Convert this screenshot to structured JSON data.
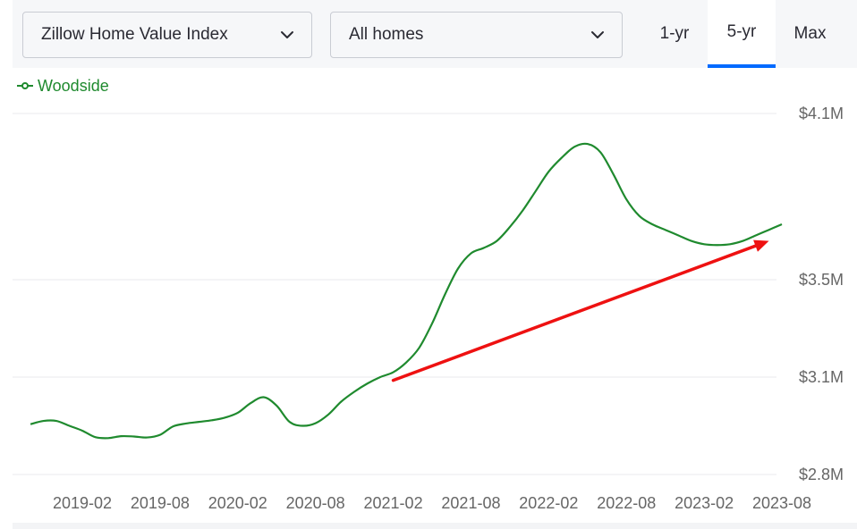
{
  "controls": {
    "metric_select": "Zillow Home Value Index",
    "home_type_select": "All homes",
    "range_tabs": [
      {
        "label": "1-yr",
        "active": false
      },
      {
        "label": "5-yr",
        "active": true
      },
      {
        "label": "Max",
        "active": false
      }
    ]
  },
  "colors": {
    "series": "#1f8a2e",
    "annotation_arrow": "#ee1111",
    "active_tab_underline": "#006aff",
    "gridline": "#e9e9ee",
    "tick_text": "#666666"
  },
  "chart_data": {
    "type": "line",
    "title": "",
    "xlabel": "",
    "ylabel": "",
    "legend_position": "top-left",
    "grid": true,
    "x_ticks": [
      "2019-02",
      "2019-08",
      "2020-02",
      "2020-08",
      "2021-02",
      "2021-08",
      "2022-02",
      "2022-08",
      "2023-02",
      "2023-08"
    ],
    "y_ticks": [
      "$4.1M",
      "$3.5M",
      "$3.1M",
      "$2.8M"
    ],
    "ylim": [
      2.8,
      4.1
    ],
    "series": [
      {
        "name": "Woodside",
        "x": [
          "2018-10",
          "2018-11",
          "2018-12",
          "2019-01",
          "2019-02",
          "2019-03",
          "2019-04",
          "2019-05",
          "2019-06",
          "2019-07",
          "2019-08",
          "2019-09",
          "2019-10",
          "2019-11",
          "2019-12",
          "2020-01",
          "2020-02",
          "2020-03",
          "2020-04",
          "2020-05",
          "2020-06",
          "2020-07",
          "2020-08",
          "2020-09",
          "2020-10",
          "2020-11",
          "2020-12",
          "2021-01",
          "2021-02",
          "2021-03",
          "2021-04",
          "2021-05",
          "2021-06",
          "2021-07",
          "2021-08",
          "2021-09",
          "2021-10",
          "2021-11",
          "2021-12",
          "2022-01",
          "2022-02",
          "2022-03",
          "2022-04",
          "2022-05",
          "2022-06",
          "2022-07",
          "2022-08",
          "2022-09",
          "2022-10",
          "2022-11",
          "2022-12",
          "2023-01",
          "2023-02",
          "2023-03",
          "2023-04",
          "2023-05",
          "2023-06",
          "2023-07",
          "2023-08"
        ],
        "values": [
          2.955,
          2.965,
          2.965,
          2.95,
          2.935,
          2.915,
          2.912,
          2.918,
          2.917,
          2.914,
          2.922,
          2.948,
          2.957,
          2.962,
          2.967,
          2.975,
          2.99,
          3.02,
          3.038,
          3.012,
          2.962,
          2.95,
          2.958,
          2.985,
          3.025,
          3.055,
          3.08,
          3.1,
          3.12,
          3.16,
          3.22,
          3.32,
          3.44,
          3.54,
          3.595,
          3.615,
          3.64,
          3.69,
          3.75,
          3.82,
          3.89,
          3.94,
          3.98,
          3.99,
          3.96,
          3.88,
          3.79,
          3.73,
          3.7,
          3.68,
          3.66,
          3.64,
          3.628,
          3.625,
          3.628,
          3.64,
          3.66,
          3.68,
          3.7
        ]
      }
    ],
    "annotation": {
      "type": "arrow",
      "from": [
        "2021-02",
        3.09
      ],
      "to": [
        "2023-07",
        3.64
      ]
    }
  }
}
